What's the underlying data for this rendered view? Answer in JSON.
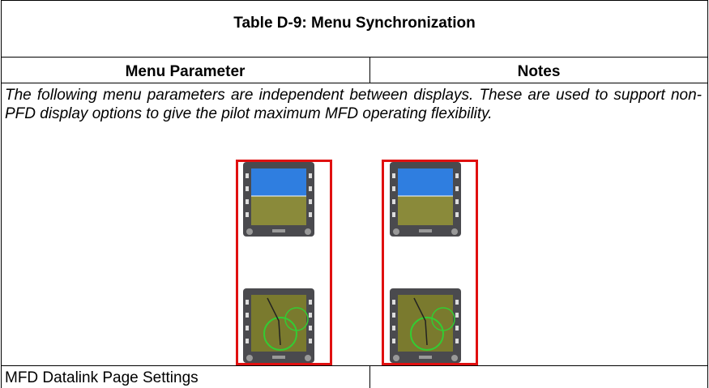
{
  "header": {
    "title": "Table D-9: Menu Synchronization"
  },
  "table": {
    "columns": [
      "Menu Parameter",
      "Notes"
    ],
    "description": "The following menu parameters are independent between displays. These are used to support non-PFD display options to give the pilot maximum MFD operating flexibility.",
    "rows": [
      [
        "MFD Datalink Page Settings"
      ]
    ]
  }
}
